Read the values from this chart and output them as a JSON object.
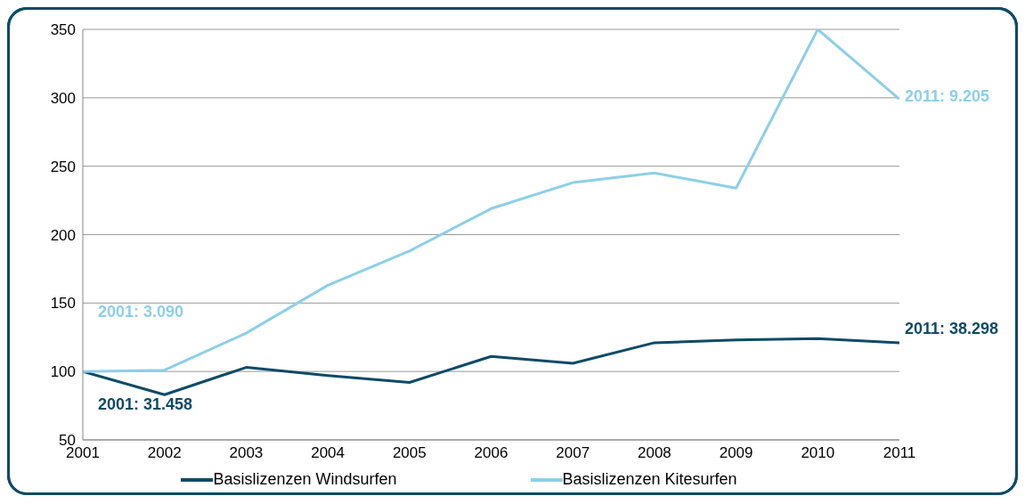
{
  "chart_data": {
    "type": "line",
    "x": [
      2001,
      2002,
      2003,
      2004,
      2005,
      2006,
      2007,
      2008,
      2009,
      2010,
      2011
    ],
    "series": [
      {
        "name": "Basislizenzen Windsurfen",
        "color": "#0d4a68",
        "values": [
          100,
          83,
          103,
          97,
          92,
          111,
          106,
          121,
          123,
          124,
          121
        ]
      },
      {
        "name": "Basislizenzen Kitesurfen",
        "color": "#8dcfe9",
        "values": [
          100,
          101,
          128,
          163,
          188,
          219,
          238,
          245,
          234,
          350,
          299
        ]
      }
    ],
    "xlim": [
      2001,
      2011
    ],
    "xticks": [
      2001,
      2002,
      2003,
      2004,
      2005,
      2006,
      2007,
      2008,
      2009,
      2010,
      2011
    ],
    "ylim": [
      50,
      350
    ],
    "yticks": [
      50,
      100,
      150,
      200,
      250,
      300,
      350
    ],
    "grid": "y",
    "legend": "bottom",
    "marker": "none",
    "line_style": "solid",
    "annotations": [
      "2001: 31.458",
      "2001: 3.090",
      "2011: 38.298",
      "2011: 9.205"
    ]
  }
}
